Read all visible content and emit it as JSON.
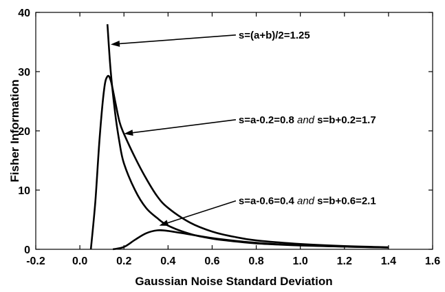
{
  "chart_data": {
    "type": "line",
    "title": "",
    "xlabel": "Gaussian Noise Standard Deviation",
    "ylabel": "Fisher Information",
    "xlim": [
      -0.2,
      1.6
    ],
    "ylim": [
      0,
      40
    ],
    "xticks": [
      "-0.2",
      "0.0",
      "0.2",
      "0.4",
      "0.6",
      "0.8",
      "1.0",
      "1.2",
      "1.4",
      "1.6"
    ],
    "yticks": [
      "0",
      "10",
      "20",
      "30",
      "40"
    ],
    "grid": false,
    "legend": "none",
    "series": [
      {
        "x": [
          0.125,
          0.14,
          0.16,
          0.18,
          0.2,
          0.25,
          0.3,
          0.35,
          0.4,
          0.5,
          0.6,
          0.7,
          0.8,
          0.9,
          1.0,
          1.2,
          1.4
        ],
        "y": [
          38.0,
          30.0,
          23.0,
          18.0,
          14.5,
          10.0,
          7.0,
          5.3,
          4.0,
          2.6,
          1.8,
          1.35,
          1.0,
          0.8,
          0.65,
          0.45,
          0.3
        ]
      },
      {
        "x": [
          0.05,
          0.07,
          0.09,
          0.11,
          0.125,
          0.14,
          0.16,
          0.18,
          0.2,
          0.25,
          0.3,
          0.35,
          0.4,
          0.5,
          0.6,
          0.7,
          0.8,
          1.0,
          1.2,
          1.4
        ],
        "y": [
          0.0,
          8.0,
          19.0,
          27.0,
          29.2,
          28.5,
          25.0,
          21.5,
          19.5,
          15.5,
          12.0,
          9.0,
          7.0,
          4.5,
          3.0,
          2.1,
          1.5,
          0.9,
          0.55,
          0.35
        ]
      },
      {
        "x": [
          0.15,
          0.2,
          0.25,
          0.3,
          0.35,
          0.4,
          0.5,
          0.6,
          0.7,
          0.8,
          0.9,
          1.0,
          1.2,
          1.4
        ],
        "y": [
          0.0,
          0.4,
          1.6,
          2.7,
          3.2,
          3.1,
          2.5,
          1.9,
          1.45,
          1.1,
          0.85,
          0.7,
          0.45,
          0.3
        ]
      }
    ],
    "annotations": [
      {
        "segments": [
          {
            "text": "s=(a+b)/2=1.25",
            "italic": false
          }
        ],
        "text_at": [
          0.72,
          35.6
        ],
        "arrow_to": [
          0.14,
          34.6
        ]
      },
      {
        "segments": [
          {
            "text": "s=a-0.2=0.8 ",
            "italic": false
          },
          {
            "text": "and",
            "italic": true
          },
          {
            "text": " s=b+0.2=1.7",
            "italic": false
          }
        ],
        "text_at": [
          0.72,
          21.3
        ],
        "arrow_to": [
          0.2,
          19.5
        ]
      },
      {
        "segments": [
          {
            "text": "s=a-0.6=0.4 ",
            "italic": false
          },
          {
            "text": "and",
            "italic": true
          },
          {
            "text": " s=b+0.6=2.1",
            "italic": false
          }
        ],
        "text_at": [
          0.72,
          7.6
        ],
        "arrow_to": [
          0.36,
          4.0
        ]
      }
    ]
  }
}
